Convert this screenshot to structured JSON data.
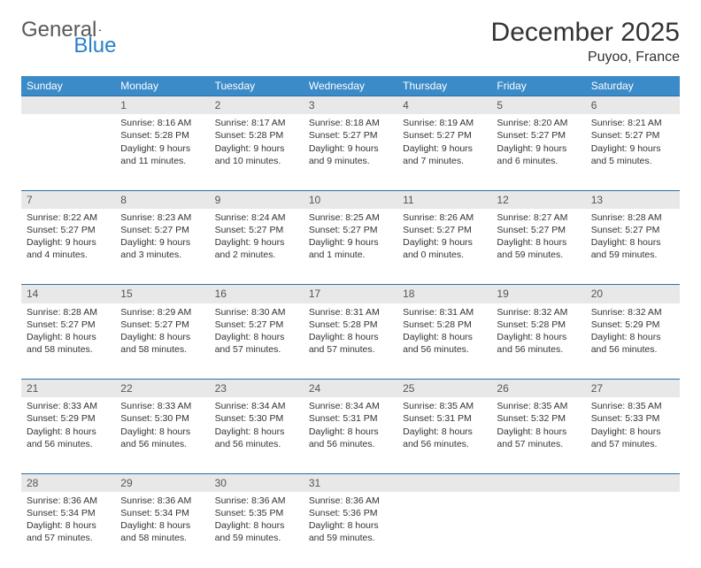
{
  "logo": {
    "text_general": "General",
    "text_blue": "Blue"
  },
  "title": "December 2025",
  "location": "Puyoo, France",
  "day_headers": [
    "Sunday",
    "Monday",
    "Tuesday",
    "Wednesday",
    "Thursday",
    "Friday",
    "Saturday"
  ],
  "colors": {
    "header_bg": "#3b8bc9",
    "row_divider": "#2a6fa8",
    "daynum_bg": "#e8e8e8",
    "text": "#333333",
    "logo_gray": "#58595b",
    "logo_blue": "#2a7fc9"
  },
  "weeks": [
    [
      {
        "num": "",
        "lines": []
      },
      {
        "num": "1",
        "lines": [
          "Sunrise: 8:16 AM",
          "Sunset: 5:28 PM",
          "Daylight: 9 hours",
          "and 11 minutes."
        ]
      },
      {
        "num": "2",
        "lines": [
          "Sunrise: 8:17 AM",
          "Sunset: 5:28 PM",
          "Daylight: 9 hours",
          "and 10 minutes."
        ]
      },
      {
        "num": "3",
        "lines": [
          "Sunrise: 8:18 AM",
          "Sunset: 5:27 PM",
          "Daylight: 9 hours",
          "and 9 minutes."
        ]
      },
      {
        "num": "4",
        "lines": [
          "Sunrise: 8:19 AM",
          "Sunset: 5:27 PM",
          "Daylight: 9 hours",
          "and 7 minutes."
        ]
      },
      {
        "num": "5",
        "lines": [
          "Sunrise: 8:20 AM",
          "Sunset: 5:27 PM",
          "Daylight: 9 hours",
          "and 6 minutes."
        ]
      },
      {
        "num": "6",
        "lines": [
          "Sunrise: 8:21 AM",
          "Sunset: 5:27 PM",
          "Daylight: 9 hours",
          "and 5 minutes."
        ]
      }
    ],
    [
      {
        "num": "7",
        "lines": [
          "Sunrise: 8:22 AM",
          "Sunset: 5:27 PM",
          "Daylight: 9 hours",
          "and 4 minutes."
        ]
      },
      {
        "num": "8",
        "lines": [
          "Sunrise: 8:23 AM",
          "Sunset: 5:27 PM",
          "Daylight: 9 hours",
          "and 3 minutes."
        ]
      },
      {
        "num": "9",
        "lines": [
          "Sunrise: 8:24 AM",
          "Sunset: 5:27 PM",
          "Daylight: 9 hours",
          "and 2 minutes."
        ]
      },
      {
        "num": "10",
        "lines": [
          "Sunrise: 8:25 AM",
          "Sunset: 5:27 PM",
          "Daylight: 9 hours",
          "and 1 minute."
        ]
      },
      {
        "num": "11",
        "lines": [
          "Sunrise: 8:26 AM",
          "Sunset: 5:27 PM",
          "Daylight: 9 hours",
          "and 0 minutes."
        ]
      },
      {
        "num": "12",
        "lines": [
          "Sunrise: 8:27 AM",
          "Sunset: 5:27 PM",
          "Daylight: 8 hours",
          "and 59 minutes."
        ]
      },
      {
        "num": "13",
        "lines": [
          "Sunrise: 8:28 AM",
          "Sunset: 5:27 PM",
          "Daylight: 8 hours",
          "and 59 minutes."
        ]
      }
    ],
    [
      {
        "num": "14",
        "lines": [
          "Sunrise: 8:28 AM",
          "Sunset: 5:27 PM",
          "Daylight: 8 hours",
          "and 58 minutes."
        ]
      },
      {
        "num": "15",
        "lines": [
          "Sunrise: 8:29 AM",
          "Sunset: 5:27 PM",
          "Daylight: 8 hours",
          "and 58 minutes."
        ]
      },
      {
        "num": "16",
        "lines": [
          "Sunrise: 8:30 AM",
          "Sunset: 5:27 PM",
          "Daylight: 8 hours",
          "and 57 minutes."
        ]
      },
      {
        "num": "17",
        "lines": [
          "Sunrise: 8:31 AM",
          "Sunset: 5:28 PM",
          "Daylight: 8 hours",
          "and 57 minutes."
        ]
      },
      {
        "num": "18",
        "lines": [
          "Sunrise: 8:31 AM",
          "Sunset: 5:28 PM",
          "Daylight: 8 hours",
          "and 56 minutes."
        ]
      },
      {
        "num": "19",
        "lines": [
          "Sunrise: 8:32 AM",
          "Sunset: 5:28 PM",
          "Daylight: 8 hours",
          "and 56 minutes."
        ]
      },
      {
        "num": "20",
        "lines": [
          "Sunrise: 8:32 AM",
          "Sunset: 5:29 PM",
          "Daylight: 8 hours",
          "and 56 minutes."
        ]
      }
    ],
    [
      {
        "num": "21",
        "lines": [
          "Sunrise: 8:33 AM",
          "Sunset: 5:29 PM",
          "Daylight: 8 hours",
          "and 56 minutes."
        ]
      },
      {
        "num": "22",
        "lines": [
          "Sunrise: 8:33 AM",
          "Sunset: 5:30 PM",
          "Daylight: 8 hours",
          "and 56 minutes."
        ]
      },
      {
        "num": "23",
        "lines": [
          "Sunrise: 8:34 AM",
          "Sunset: 5:30 PM",
          "Daylight: 8 hours",
          "and 56 minutes."
        ]
      },
      {
        "num": "24",
        "lines": [
          "Sunrise: 8:34 AM",
          "Sunset: 5:31 PM",
          "Daylight: 8 hours",
          "and 56 minutes."
        ]
      },
      {
        "num": "25",
        "lines": [
          "Sunrise: 8:35 AM",
          "Sunset: 5:31 PM",
          "Daylight: 8 hours",
          "and 56 minutes."
        ]
      },
      {
        "num": "26",
        "lines": [
          "Sunrise: 8:35 AM",
          "Sunset: 5:32 PM",
          "Daylight: 8 hours",
          "and 57 minutes."
        ]
      },
      {
        "num": "27",
        "lines": [
          "Sunrise: 8:35 AM",
          "Sunset: 5:33 PM",
          "Daylight: 8 hours",
          "and 57 minutes."
        ]
      }
    ],
    [
      {
        "num": "28",
        "lines": [
          "Sunrise: 8:36 AM",
          "Sunset: 5:34 PM",
          "Daylight: 8 hours",
          "and 57 minutes."
        ]
      },
      {
        "num": "29",
        "lines": [
          "Sunrise: 8:36 AM",
          "Sunset: 5:34 PM",
          "Daylight: 8 hours",
          "and 58 minutes."
        ]
      },
      {
        "num": "30",
        "lines": [
          "Sunrise: 8:36 AM",
          "Sunset: 5:35 PM",
          "Daylight: 8 hours",
          "and 59 minutes."
        ]
      },
      {
        "num": "31",
        "lines": [
          "Sunrise: 8:36 AM",
          "Sunset: 5:36 PM",
          "Daylight: 8 hours",
          "and 59 minutes."
        ]
      },
      {
        "num": "",
        "lines": []
      },
      {
        "num": "",
        "lines": []
      },
      {
        "num": "",
        "lines": []
      }
    ]
  ]
}
